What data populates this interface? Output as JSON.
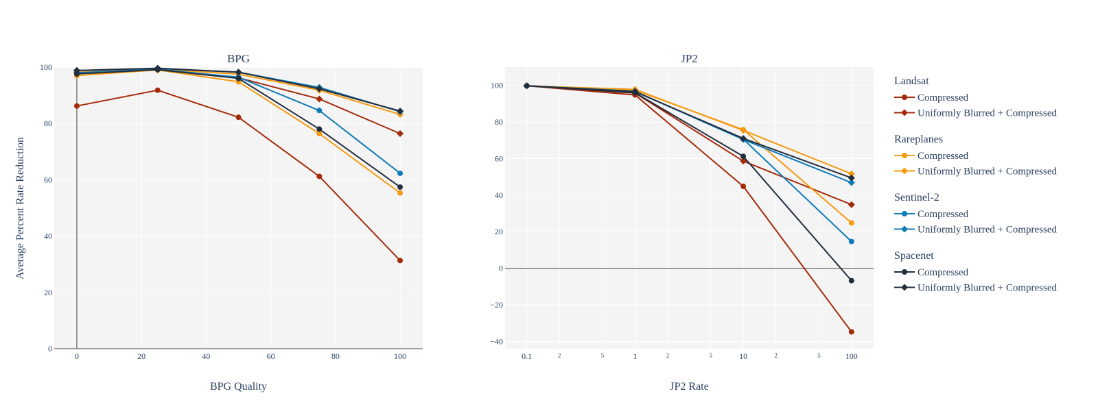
{
  "figure": {
    "y_axis_title": "Average Percent Rate Reduction"
  },
  "colors": {
    "Landsat": "#a52a0a",
    "Rareplanes": "#f59a12",
    "Sentinel-2": "#0f7bb8",
    "Spacenet": "#222d3d",
    "plot_bg": "#f4f4f4",
    "grid": "#ffffff",
    "zeroline": "#444444",
    "text": "#2a3f5f"
  },
  "legend": {
    "position": "right",
    "groups": [
      {
        "title": "Landsat",
        "entries": [
          {
            "label": "Compressed",
            "marker": "circle"
          },
          {
            "label": "Uniformly Blurred + Compressed",
            "marker": "diamond"
          }
        ]
      },
      {
        "title": "Rareplanes",
        "entries": [
          {
            "label": "Compressed",
            "marker": "circle"
          },
          {
            "label": "Uniformly Blurred + Compressed",
            "marker": "diamond"
          }
        ]
      },
      {
        "title": "Sentinel-2",
        "entries": [
          {
            "label": "Compressed",
            "marker": "circle"
          },
          {
            "label": "Uniformly Blurred + Compressed",
            "marker": "diamond"
          }
        ]
      },
      {
        "title": "Spacenet",
        "entries": [
          {
            "label": "Compressed",
            "marker": "circle"
          },
          {
            "label": "Uniformly Blurred + Compressed",
            "marker": "diamond"
          }
        ]
      }
    ]
  },
  "chart_data": [
    {
      "type": "line",
      "title": "BPG",
      "xlabel": "BPG Quality",
      "ylabel": "Average Percent Rate Reduction",
      "xscale": "linear",
      "xlim": [
        -7,
        107
      ],
      "ylim": [
        0,
        100
      ],
      "xticks": [
        0,
        20,
        40,
        60,
        80,
        100
      ],
      "xtick_labels": [
        "0",
        "20",
        "40",
        "60",
        "80",
        "100"
      ],
      "yticks": [
        0,
        20,
        40,
        60,
        80,
        100
      ],
      "ytick_labels": [
        "0",
        "20",
        "40",
        "60",
        "80",
        "100"
      ],
      "x": [
        0,
        25,
        50,
        75,
        100
      ],
      "series": [
        {
          "dataset": "Landsat",
          "name": "Compressed",
          "marker": "circle",
          "values": [
            86.2,
            91.8,
            82.2,
            61.2,
            31.3
          ]
        },
        {
          "dataset": "Landsat",
          "name": "Uniformly Blurred + Compressed",
          "marker": "diamond",
          "values": [
            97.8,
            99.0,
            96.2,
            88.7,
            76.4
          ]
        },
        {
          "dataset": "Rareplanes",
          "name": "Compressed",
          "marker": "circle",
          "values": [
            97.0,
            99.0,
            94.8,
            76.4,
            55.3
          ]
        },
        {
          "dataset": "Rareplanes",
          "name": "Uniformly Blurred + Compressed",
          "marker": "diamond",
          "values": [
            98.2,
            99.3,
            97.5,
            91.8,
            83.2
          ]
        },
        {
          "dataset": "Sentinel-2",
          "name": "Compressed",
          "marker": "circle",
          "values": [
            98.0,
            99.2,
            96.4,
            84.6,
            62.3
          ]
        },
        {
          "dataset": "Sentinel-2",
          "name": "Uniformly Blurred + Compressed",
          "marker": "diamond",
          "values": [
            98.8,
            99.5,
            98.2,
            92.8,
            84.2
          ]
        },
        {
          "dataset": "Spacenet",
          "name": "Compressed",
          "marker": "circle",
          "values": [
            97.6,
            99.1,
            96.0,
            78.0,
            57.4
          ]
        },
        {
          "dataset": "Spacenet",
          "name": "Uniformly Blurred + Compressed",
          "marker": "diamond",
          "values": [
            98.8,
            99.6,
            98.2,
            92.3,
            84.4
          ]
        }
      ]
    },
    {
      "type": "line",
      "title": "JP2",
      "xlabel": "JP2 Rate",
      "ylabel": "",
      "xscale": "log",
      "xlim": [
        0.063,
        160
      ],
      "ylim": [
        -44,
        110
      ],
      "xticks": [
        0.1,
        1,
        10,
        100
      ],
      "xtick_labels": [
        "0.1",
        "1",
        "10",
        "100"
      ],
      "minor_xticks": [
        0.2,
        0.5,
        2,
        5,
        20,
        50
      ],
      "minor_xtick_labels": [
        "2",
        "5",
        "2",
        "5",
        "2",
        "5"
      ],
      "yticks": [
        -40,
        -20,
        0,
        20,
        40,
        60,
        80,
        100
      ],
      "ytick_labels": [
        "−40",
        "−20",
        "0",
        "20",
        "40",
        "60",
        "80",
        "100"
      ],
      "x": [
        0.1,
        1,
        10,
        100
      ],
      "series": [
        {
          "dataset": "Landsat",
          "name": "Compressed",
          "marker": "circle",
          "values": [
            99.8,
            94.8,
            44.8,
            -34.8
          ]
        },
        {
          "dataset": "Landsat",
          "name": "Uniformly Blurred + Compressed",
          "marker": "diamond",
          "values": [
            99.8,
            95.8,
            58.6,
            34.8
          ]
        },
        {
          "dataset": "Rareplanes",
          "name": "Compressed",
          "marker": "circle",
          "values": [
            99.8,
            97.4,
            75.8,
            24.8
          ]
        },
        {
          "dataset": "Rareplanes",
          "name": "Uniformly Blurred + Compressed",
          "marker": "diamond",
          "values": [
            99.8,
            97.8,
            75.4,
            51.6
          ]
        },
        {
          "dataset": "Sentinel-2",
          "name": "Compressed",
          "marker": "circle",
          "values": [
            99.8,
            96.6,
            70.6,
            14.6
          ]
        },
        {
          "dataset": "Sentinel-2",
          "name": "Uniformly Blurred + Compressed",
          "marker": "diamond",
          "values": [
            99.8,
            96.8,
            70.4,
            46.8
          ]
        },
        {
          "dataset": "Spacenet",
          "name": "Compressed",
          "marker": "circle",
          "values": [
            99.8,
            96.0,
            61.2,
            -6.8
          ]
        },
        {
          "dataset": "Spacenet",
          "name": "Uniformly Blurred + Compressed",
          "marker": "diamond",
          "values": [
            99.8,
            96.6,
            71.0,
            49.4
          ]
        }
      ]
    }
  ]
}
